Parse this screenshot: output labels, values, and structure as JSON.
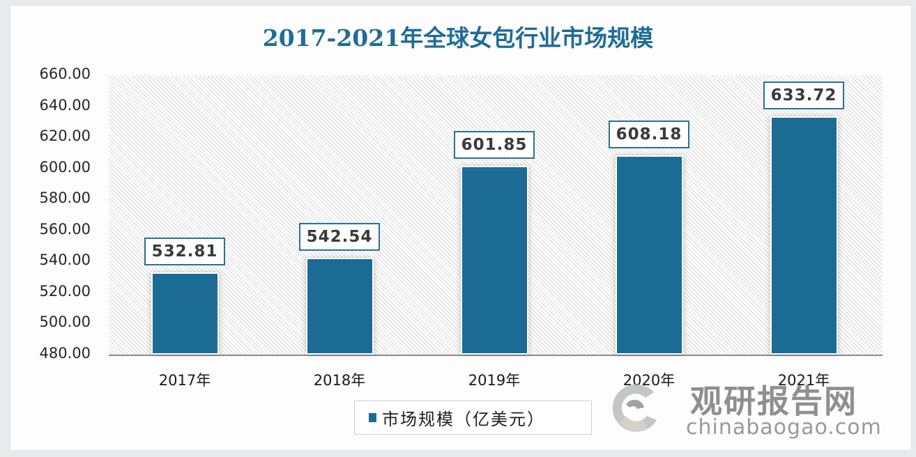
{
  "chart_data": {
    "type": "bar",
    "title": "2017-2021年全球女包行业市场规模",
    "categories": [
      "2017年",
      "2018年",
      "2019年",
      "2020年",
      "2021年"
    ],
    "series": [
      {
        "name": "市场规模（亿美元）",
        "values": [
          532.81,
          542.54,
          601.85,
          608.18,
          633.72
        ],
        "color": "#1b6b95"
      }
    ],
    "data_labels": [
      "532.81",
      "542.54",
      "601.85",
      "608.18",
      "633.72"
    ],
    "xlabel": "",
    "ylabel": "",
    "ylim": [
      480,
      660
    ],
    "yticks": [
      "660.00",
      "640.00",
      "620.00",
      "600.00",
      "580.00",
      "560.00",
      "540.00",
      "520.00",
      "500.00",
      "480.00"
    ],
    "grid": false,
    "legend_position": "bottom"
  },
  "watermark": {
    "name_cn": "观研报告网",
    "url": "chinabaogao.com"
  }
}
